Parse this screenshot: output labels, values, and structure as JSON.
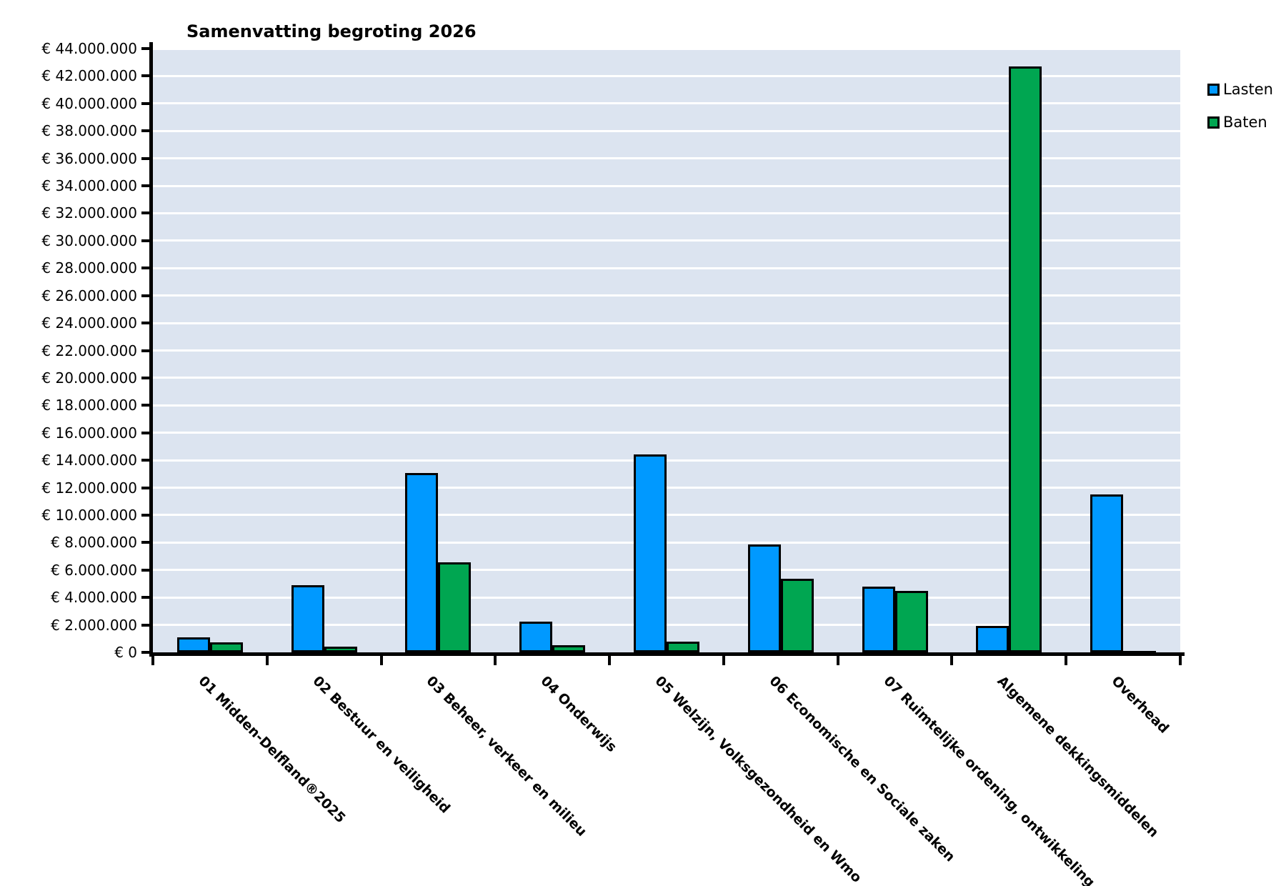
{
  "chart_data": {
    "type": "bar",
    "title": "Samenvatting begroting 2026",
    "categories": [
      "01 Midden-Delfland®2025",
      "02 Bestuur en veiligheid",
      "03 Beheer, verkeer en milieu",
      "04 Onderwijs",
      "05 Welzijn, Volksgezondheid en Wmo",
      "06 Economische en Sociale zaken",
      "07 Ruimtelijke ordening, ontwikkeling",
      "Algemene dekkingsmiddelen",
      "Overhead"
    ],
    "series": [
      {
        "name": "Lasten",
        "color": "#0099FF",
        "values": [
          1100000,
          4900000,
          13050000,
          2250000,
          14400000,
          7870000,
          4790000,
          1950000,
          11500000
        ]
      },
      {
        "name": "Baten",
        "color": "#00A651",
        "values": [
          750000,
          400000,
          6570000,
          520000,
          780000,
          5360000,
          4460000,
          42700000,
          30000
        ]
      }
    ],
    "ylim": [
      0,
      44000000
    ],
    "y_axis": {
      "tick_values": [
        0,
        2000000,
        4000000,
        6000000,
        8000000,
        10000000,
        12000000,
        14000000,
        16000000,
        18000000,
        20000000,
        22000000,
        24000000,
        26000000,
        28000000,
        30000000,
        32000000,
        34000000,
        36000000,
        38000000,
        40000000,
        42000000,
        44000000
      ],
      "tick_labels": [
        "€ 0",
        "€ 2.000.000",
        "€ 4.000.000",
        "€ 6.000.000",
        "€ 8.000.000",
        "€ 10.000.000",
        "€ 12.000.000",
        "€ 14.000.000",
        "€ 16.000.000",
        "€ 18.000.000",
        "€ 20.000.000",
        "€ 22.000.000",
        "€ 24.000.000",
        "€ 26.000.000",
        "€ 28.000.000",
        "€ 30.000.000",
        "€ 32.000.000",
        "€ 34.000.000",
        "€ 36.000.000",
        "€ 38.000.000",
        "€ 40.000.000",
        "€ 42.000.000",
        "€ 44.000.000"
      ]
    },
    "legend": {
      "position": "right",
      "entries": [
        "Lasten",
        "Baten"
      ]
    },
    "grid": true,
    "colors": {
      "plot_background": "#DCE4F0",
      "gridline": "#FFFFFF",
      "axis": "#000000",
      "text": "#000000",
      "page_background": "#FFFFFF"
    }
  }
}
